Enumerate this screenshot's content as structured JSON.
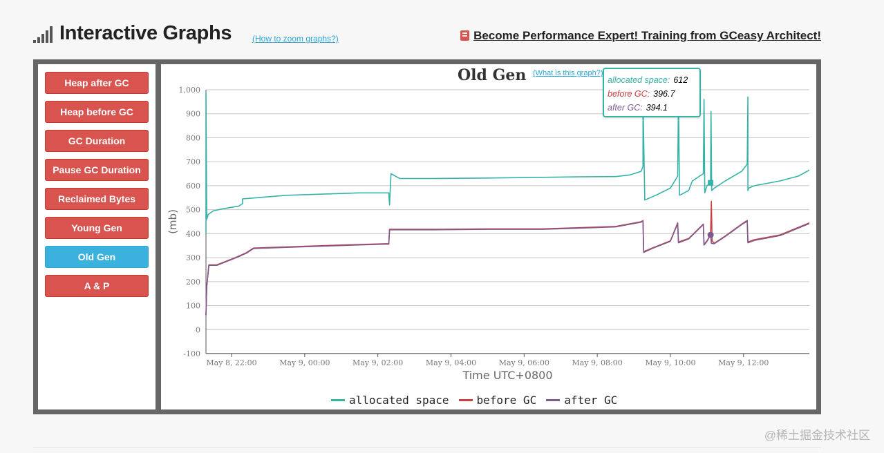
{
  "header": {
    "title": "Interactive Graphs",
    "zoom_link": "(How to zoom graphs?)",
    "promo": "Become Performance Expert! Training from GCeasy Architect!"
  },
  "sidebar": {
    "items": [
      {
        "label": "Heap after GC",
        "active": false
      },
      {
        "label": "Heap before GC",
        "active": false
      },
      {
        "label": "GC Duration",
        "active": false
      },
      {
        "label": "Pause GC Duration",
        "active": false
      },
      {
        "label": "Reclaimed Bytes",
        "active": false
      },
      {
        "label": "Young Gen",
        "active": false
      },
      {
        "label": "Old Gen",
        "active": true
      },
      {
        "label": "A & P",
        "active": false
      }
    ]
  },
  "chart": {
    "title": "Old Gen",
    "help_link": "(What is this graph?)"
  },
  "tooltip": {
    "rows": [
      {
        "label": "allocated space:",
        "value": "612"
      },
      {
        "label": "before GC:",
        "value": "396.7"
      },
      {
        "label": "after GC:",
        "value": "394.1"
      }
    ]
  },
  "colors": {
    "allocated": "#34b3a7",
    "before": "#c9403f",
    "after": "#7e5a8e",
    "active_button": "#3bb2dd",
    "button": "#d9534f"
  },
  "watermark": "@稀土掘金技术社区",
  "chart_data": {
    "type": "line",
    "xlabel": "Time UTC+0800",
    "ylabel": "(mb)",
    "ylim": [
      -100,
      1000
    ],
    "yticks": [
      -100,
      0,
      100,
      200,
      300,
      400,
      500,
      600,
      700,
      800,
      900,
      1000
    ],
    "ytick_labels": [
      "-100",
      "0",
      "100",
      "200",
      "300",
      "400",
      "500",
      "600",
      "700",
      "800",
      "900",
      "1,000"
    ],
    "xlim": [
      21.3,
      37.8
    ],
    "xticks": [
      22,
      24,
      26,
      28,
      30,
      32,
      34,
      36
    ],
    "xtick_labels": [
      "May 8, 22:00",
      "May 9, 00:00",
      "May 9, 02:00",
      "May 9, 04:00",
      "May 9, 06:00",
      "May 9, 08:00",
      "May 9, 10:00",
      "May 9, 12:00"
    ],
    "grid": true,
    "legend": "bottom",
    "series": [
      {
        "name": "allocated space",
        "x": [
          21.3,
          21.3,
          21.32,
          21.36,
          21.5,
          21.8,
          22.2,
          22.3,
          22.3,
          22.7,
          23.5,
          24.5,
          25.5,
          26.2,
          26.3,
          26.32,
          26.36,
          26.6,
          27.5,
          29.0,
          30.5,
          31.5,
          32.5,
          32.9,
          33.2,
          33.25,
          33.25,
          33.3,
          33.6,
          34.0,
          34.2,
          34.22,
          34.25,
          34.5,
          34.6,
          34.9,
          34.92,
          34.94,
          35.0,
          35.1,
          35.11,
          35.13,
          35.2,
          35.5,
          35.95,
          36.1,
          36.12,
          36.12,
          36.14,
          36.3,
          37.0,
          37.5,
          37.8
        ],
        "y": [
          400,
          990,
          460,
          480,
          495,
          505,
          515,
          525,
          545,
          550,
          560,
          565,
          570,
          570,
          570,
          520,
          650,
          630,
          630,
          632,
          635,
          637,
          638,
          645,
          660,
          680,
          960,
          540,
          560,
          590,
          640,
          960,
          560,
          580,
          620,
          650,
          960,
          570,
          600,
          612,
          910,
          580,
          590,
          620,
          660,
          690,
          970,
          580,
          590,
          600,
          620,
          640,
          665
        ]
      },
      {
        "name": "before GC",
        "x": [
          21.3,
          21.32,
          21.38,
          21.6,
          22.1,
          22.4,
          22.6,
          23.5,
          24.5,
          25.5,
          26.2,
          26.3,
          26.32,
          27.5,
          29.0,
          30.5,
          31.5,
          32.5,
          33.2,
          33.25,
          33.27,
          33.5,
          34.0,
          34.2,
          34.22,
          34.5,
          34.9,
          34.92,
          35.0,
          35.1,
          35.12,
          35.14,
          35.2,
          35.5,
          35.95,
          36.1,
          36.12,
          36.3,
          37.0,
          37.8
        ],
        "y": [
          60,
          180,
          270,
          270,
          300,
          320,
          340,
          345,
          350,
          355,
          358,
          358,
          418,
          418,
          420,
          420,
          425,
          430,
          450,
          455,
          325,
          340,
          370,
          445,
          365,
          380,
          440,
          355,
          370,
          396.7,
          535,
          370,
          360,
          390,
          440,
          455,
          365,
          375,
          395,
          445
        ]
      },
      {
        "name": "after GC",
        "x": [
          21.3,
          21.32,
          21.38,
          21.6,
          22.1,
          22.4,
          22.6,
          23.5,
          24.5,
          25.5,
          26.2,
          26.3,
          26.32,
          27.5,
          29.0,
          30.5,
          31.5,
          32.5,
          33.2,
          33.25,
          33.27,
          33.5,
          34.0,
          34.2,
          34.22,
          34.5,
          34.9,
          34.92,
          35.0,
          35.1,
          35.12,
          35.2,
          35.5,
          35.95,
          36.1,
          36.12,
          36.3,
          37.0,
          37.8
        ],
        "y": [
          60,
          180,
          268,
          268,
          298,
          318,
          338,
          343,
          348,
          353,
          356,
          356,
          416,
          416,
          418,
          418,
          423,
          428,
          448,
          452,
          322,
          338,
          368,
          442,
          362,
          378,
          438,
          352,
          368,
          394.1,
          360,
          358,
          388,
          438,
          452,
          362,
          372,
          392,
          442
        ]
      }
    ]
  }
}
